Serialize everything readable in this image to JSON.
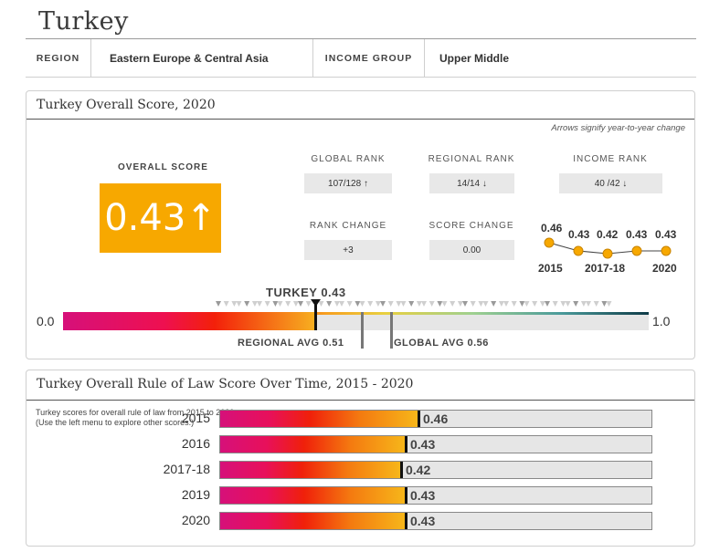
{
  "country": "Turkey",
  "meta": {
    "region_label": "REGION",
    "region_value": "Eastern Europe & Central Asia",
    "income_label": "INCOME GROUP",
    "income_value": "Upper Middle"
  },
  "overall": {
    "card_title": "Turkey Overall Score, 2020",
    "arrows_note": "Arrows signify year-to-year change",
    "score_label": "OVERALL SCORE",
    "score_value": "0.43",
    "score_arrow": "↑",
    "global_rank_label": "GLOBAL RANK",
    "global_rank_value": "107/128 ↑",
    "regional_rank_label": "REGIONAL RANK",
    "regional_rank_value": "14/14 ↓",
    "income_rank_label": "INCOME RANK",
    "income_rank_value": "40 /42 ↓",
    "rank_change_label": "RANK CHANGE",
    "rank_change_value": "+3",
    "score_change_label": "SCORE CHANGE",
    "score_change_value": "0.00",
    "trend": {
      "values": [
        "0.46",
        "0.43",
        "0.42",
        "0.43",
        "0.43"
      ],
      "numeric": [
        0.46,
        0.43,
        0.42,
        0.43,
        0.43
      ],
      "year_labels": [
        "2015",
        "2017-18",
        "2020"
      ]
    },
    "scale": {
      "min_label": "0.0",
      "max_label": "1.0",
      "country_label": "TURKEY 0.43",
      "country_value": 0.43,
      "regional_label": "REGIONAL AVG 0.51",
      "regional_value": 0.51,
      "global_label": "GLOBAL AVG 0.56",
      "global_value": 0.56
    }
  },
  "history": {
    "card_title": "Turkey Overall Rule of Law Score Over Time, 2015 - 2020",
    "description": "Turkey scores for overall rule of law from 2015 to 2020. (Use the left menu to explore other scores.)",
    "rows": [
      {
        "year": "2015",
        "value": "0.46",
        "score": 0.46
      },
      {
        "year": "2016",
        "value": "0.43",
        "score": 0.43
      },
      {
        "year": "2017-18",
        "value": "0.42",
        "score": 0.42
      },
      {
        "year": "2019",
        "value": "0.43",
        "score": 0.43
      },
      {
        "year": "2020",
        "value": "0.43",
        "score": 0.43
      }
    ]
  },
  "colors": {
    "accent": "#f7a800",
    "gradient_start": "#d6107a",
    "gradient_end": "#0e3b47"
  }
}
